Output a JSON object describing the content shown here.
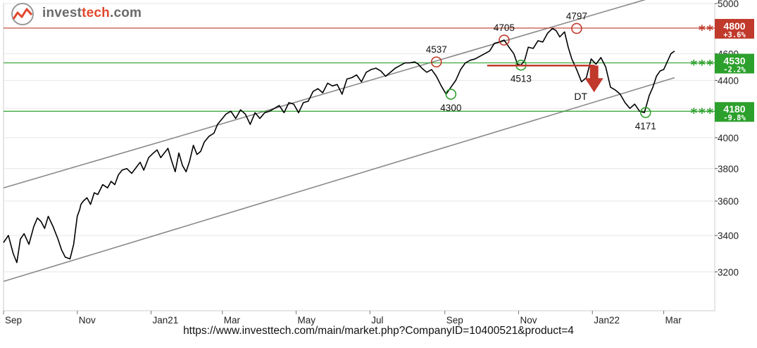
{
  "logo": {
    "text_prefix": "invest",
    "text_accent": "tech",
    "text_suffix": ".com",
    "icon": "investtech-logo-icon",
    "accent_color": "#e2472c"
  },
  "url": "https://www.investtech.com/main/market.php?CompanyID=10400521&product=4",
  "chart_data": {
    "type": "line",
    "y_scale": "log",
    "ylim": [
      3000,
      5000
    ],
    "y_ticks": [
      3200,
      3400,
      3600,
      3800,
      4000,
      4200,
      4400,
      4600,
      5000
    ],
    "x_labels": [
      "Sep",
      "Nov",
      "Jan21",
      "Mar",
      "May",
      "Jul",
      "Sep",
      "Nov",
      "Jan22",
      "Mar"
    ],
    "x_label_days": [
      0,
      61,
      122,
      181,
      242,
      303,
      365,
      426,
      487,
      546
    ],
    "grid": "horizontal",
    "series": [
      {
        "line_color": "#000000",
        "x": [
          0,
          4,
          8,
          11,
          14,
          17,
          21,
          25,
          28,
          31,
          34,
          37,
          41,
          45,
          48,
          51,
          55,
          58,
          61,
          63,
          64,
          66,
          69,
          72,
          75,
          78,
          82,
          86,
          89,
          92,
          95,
          98,
          102,
          106,
          110,
          113,
          116,
          120,
          124,
          127,
          130,
          133,
          136,
          139,
          142,
          145,
          148,
          151,
          154,
          157,
          160,
          163,
          166,
          170,
          174,
          177,
          180,
          184,
          188,
          192,
          196,
          200,
          204,
          208,
          212,
          216,
          220,
          224,
          228,
          232,
          236,
          240,
          244,
          248,
          252,
          256,
          260,
          264,
          268,
          272,
          276,
          280,
          284,
          288,
          292,
          296,
          300,
          304,
          308,
          312,
          316,
          320,
          324,
          328,
          332,
          336,
          340,
          343,
          346,
          350,
          354,
          358,
          362,
          366,
          370,
          374,
          378,
          382,
          386,
          390,
          394,
          398,
          402,
          406,
          410,
          414,
          418,
          422,
          425,
          428,
          431,
          434,
          438,
          442,
          446,
          450,
          454,
          457,
          460,
          464,
          467,
          470,
          474,
          478,
          482,
          486,
          490,
          494,
          498,
          502,
          506,
          510,
          514,
          518,
          522,
          526,
          530,
          532,
          534,
          537,
          540,
          543,
          546,
          549,
          552,
          555
        ],
        "y": [
          3360,
          3400,
          3300,
          3250,
          3380,
          3410,
          3350,
          3450,
          3500,
          3480,
          3440,
          3510,
          3450,
          3380,
          3320,
          3280,
          3270,
          3350,
          3510,
          3550,
          3580,
          3600,
          3620,
          3580,
          3650,
          3640,
          3700,
          3680,
          3720,
          3700,
          3760,
          3790,
          3800,
          3770,
          3810,
          3840,
          3790,
          3870,
          3900,
          3920,
          3870,
          3900,
          3930,
          3850,
          3780,
          3900,
          3820,
          3780,
          3850,
          3950,
          3890,
          3910,
          3970,
          4010,
          4030,
          4090,
          4120,
          4160,
          4180,
          4130,
          4190,
          4160,
          4090,
          4170,
          4130,
          4170,
          4180,
          4200,
          4220,
          4170,
          4240,
          4230,
          4170,
          4240,
          4250,
          4320,
          4340,
          4310,
          4380,
          4360,
          4370,
          4300,
          4410,
          4420,
          4440,
          4390,
          4460,
          4480,
          4490,
          4470,
          4430,
          4460,
          4490,
          4510,
          4530,
          4530,
          4537,
          4520,
          4490,
          4460,
          4480,
          4430,
          4360,
          4300,
          4350,
          4400,
          4480,
          4530,
          4550,
          4560,
          4580,
          4600,
          4620,
          4680,
          4690,
          4705,
          4650,
          4600,
          4520,
          4513,
          4550,
          4650,
          4640,
          4700,
          4690,
          4760,
          4797,
          4780,
          4730,
          4770,
          4650,
          4560,
          4480,
          4390,
          4420,
          4560,
          4520,
          4570,
          4500,
          4350,
          4330,
          4300,
          4240,
          4200,
          4230,
          4180,
          4171,
          4230,
          4290,
          4350,
          4430,
          4470,
          4480,
          4540,
          4600,
          4620
        ]
      }
    ],
    "trend_channel": {
      "color": "#8a8a8a",
      "upper": {
        "x": [
          0,
          540
        ],
        "y": [
          3680,
          5060
        ]
      },
      "lower": {
        "x": [
          0,
          555
        ],
        "y": [
          3150,
          4420
        ]
      }
    },
    "horizontal_levels": [
      {
        "value": 4800,
        "label": "4800",
        "change": "+3.6%",
        "stars": "**",
        "color": "#c0392b"
      },
      {
        "value": 4530,
        "label": "4530",
        "change": "-2.2%",
        "stars": "***",
        "color": "#2ca02c"
      },
      {
        "value": 4180,
        "label": "4180",
        "change": "-9.8%",
        "stars": "***",
        "color": "#2ca02c"
      }
    ],
    "pivot_points": [
      {
        "x": 358,
        "y": 4537,
        "label": "4537",
        "type": "top",
        "label_position": "above"
      },
      {
        "x": 370,
        "y": 4300,
        "label": "4300",
        "type": "bottom",
        "label_position": "below"
      },
      {
        "x": 414,
        "y": 4705,
        "label": "4705",
        "type": "top",
        "label_position": "above"
      },
      {
        "x": 428,
        "y": 4513,
        "label": "4513",
        "type": "bottom",
        "label_position": "below"
      },
      {
        "x": 474,
        "y": 4797,
        "label": "4797",
        "type": "top",
        "label_position": "above"
      },
      {
        "x": 531,
        "y": 4171,
        "label": "4171",
        "type": "bottom",
        "label_position": "below"
      }
    ],
    "signal": {
      "label": "DT",
      "line_from_x": 400,
      "line_to_x": 489,
      "value": 4510,
      "color": "#c0392b"
    }
  }
}
